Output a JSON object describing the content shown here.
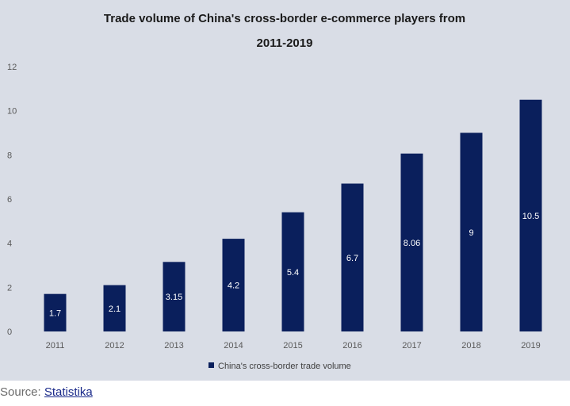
{
  "chart_data": {
    "type": "bar",
    "title": "Trade volume of China's cross-border e-commerce players from",
    "subtitle": "2011-2019",
    "categories": [
      "2011",
      "2012",
      "2013",
      "2014",
      "2015",
      "2016",
      "2017",
      "2018",
      "2019"
    ],
    "series": [
      {
        "name": "China's cross-border trade volume",
        "values": [
          1.7,
          2.1,
          3.15,
          4.2,
          5.4,
          6.7,
          8.06,
          9,
          10.5
        ],
        "labels": [
          "1.7",
          "2.1",
          "3.15",
          "4.2",
          "5.4",
          "6.7",
          "8.06",
          "9",
          "10.5"
        ]
      }
    ],
    "xlabel": "",
    "ylabel": "",
    "ylim": [
      0,
      12
    ],
    "yticks": [
      "0",
      "2",
      "4",
      "6",
      "8",
      "10",
      "12"
    ],
    "grid": false,
    "legend_position": "bottom",
    "colors": {
      "bar": "#0a1f5c",
      "background": "#d9dde6"
    }
  },
  "source": {
    "prefix": "Source: ",
    "link_text": "Statistika"
  }
}
